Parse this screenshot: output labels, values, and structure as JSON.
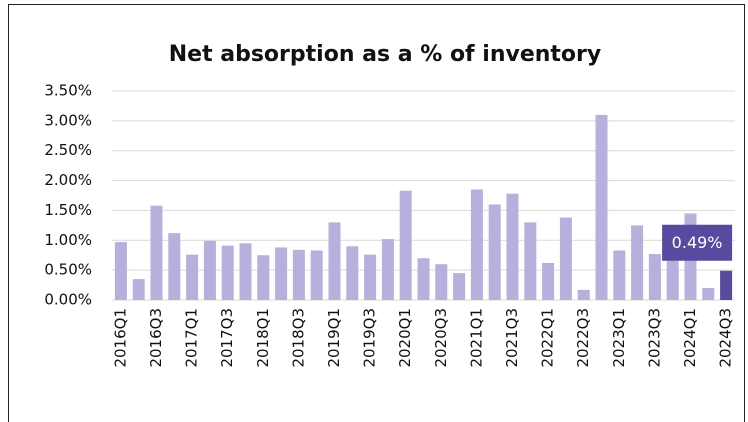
{
  "chart_data": {
    "type": "bar",
    "title": "Net absorption as a % of inventory",
    "categories": [
      "2016Q1",
      null,
      "2016Q3",
      null,
      "2017Q1",
      null,
      "2017Q3",
      null,
      "2018Q1",
      null,
      "2018Q3",
      null,
      "2019Q1",
      null,
      "2019Q3",
      null,
      "2020Q1",
      null,
      "2020Q3",
      null,
      "2021Q1",
      null,
      "2021Q3",
      null,
      "2022Q1",
      null,
      "2022Q3",
      null,
      "2023Q1",
      null,
      "2023Q3",
      null,
      "2024Q1",
      null,
      "2024Q3"
    ],
    "values": [
      0.97,
      0.35,
      1.58,
      1.12,
      0.76,
      0.99,
      0.91,
      0.95,
      0.75,
      0.88,
      0.84,
      0.83,
      1.3,
      0.9,
      0.76,
      1.02,
      1.83,
      0.7,
      0.6,
      0.45,
      1.85,
      1.6,
      1.78,
      1.3,
      0.62,
      1.38,
      0.17,
      3.1,
      0.83,
      1.25,
      0.77,
      0.85,
      1.45,
      0.2,
      0.49
    ],
    "value_labels": [
      null,
      null,
      null,
      null,
      null,
      null,
      null,
      null,
      null,
      null,
      null,
      null,
      null,
      null,
      null,
      null,
      null,
      null,
      null,
      null,
      null,
      null,
      null,
      null,
      null,
      null,
      null,
      null,
      null,
      null,
      null,
      null,
      null,
      null,
      "0.49%"
    ],
    "colors": [
      "#b7b0dd",
      "#b7b0dd",
      "#b7b0dd",
      "#b7b0dd",
      "#b7b0dd",
      "#b7b0dd",
      "#b7b0dd",
      "#b7b0dd",
      "#b7b0dd",
      "#b7b0dd",
      "#b7b0dd",
      "#b7b0dd",
      "#b7b0dd",
      "#b7b0dd",
      "#b7b0dd",
      "#b7b0dd",
      "#b7b0dd",
      "#b7b0dd",
      "#b7b0dd",
      "#b7b0dd",
      "#b7b0dd",
      "#b7b0dd",
      "#b7b0dd",
      "#b7b0dd",
      "#b7b0dd",
      "#b7b0dd",
      "#b7b0dd",
      "#b7b0dd",
      "#b7b0dd",
      "#b7b0dd",
      "#b7b0dd",
      "#b7b0dd",
      "#b7b0dd",
      "#b7b0dd",
      "#5a4a9f"
    ],
    "ylim": [
      0,
      3.5
    ],
    "yticks": [
      {
        "value": 0,
        "label": "0.00%"
      },
      {
        "value": 0.5,
        "label": "0.50%"
      },
      {
        "value": 1,
        "label": "1.00%"
      },
      {
        "value": 1.5,
        "label": "1.50%"
      },
      {
        "value": 2,
        "label": "2.00%"
      },
      {
        "value": 2.5,
        "label": "2.50%"
      },
      {
        "value": 3,
        "label": "3.00%"
      },
      {
        "value": 3.5,
        "label": "3.50%"
      }
    ],
    "grid": true
  }
}
